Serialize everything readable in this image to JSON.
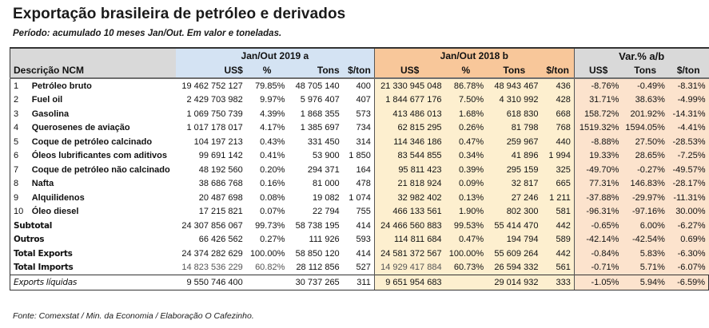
{
  "title": "Exportação brasileira de petróleo e derivados",
  "subtitle": "Período: acumulado 10 meses Jan/Out. Em valor e toneladas.",
  "source": "Fonte: Comexstat / Min. da Economia / Elaboração O Cafezinho.",
  "colors": {
    "period_a_header": "#d4e3f3",
    "period_b_header": "#f8c79a",
    "period_b_body": "#fdefcf",
    "variation_header": "#d9d9d9",
    "variation_body": "#fce3cd"
  },
  "header": {
    "desc": "Descrição NCM",
    "group_a": "Jan/Out 2019 a",
    "group_b": "Jan/Out 2018 b",
    "group_v": "Var.% a/b",
    "a_cols": [
      "US$",
      "%",
      "Tons",
      "$/ton"
    ],
    "b_cols": [
      "US$",
      "%",
      "Tons",
      "$/ton"
    ],
    "v_cols": [
      "US$",
      "Tons",
      "$/ton"
    ]
  },
  "rows": [
    {
      "idx": "1",
      "desc": "Petróleo bruto",
      "a": [
        "19 462 752 127",
        "79.85%",
        "48 705 140",
        "400"
      ],
      "b": [
        "21 330 945 048",
        "86.78%",
        "48 943 467",
        "436"
      ],
      "v": [
        "-8.76%",
        "-0.49%",
        "-8.31%"
      ]
    },
    {
      "idx": "2",
      "desc": "Fuel oil",
      "a": [
        "2 429 703 982",
        "9.97%",
        "5 976 407",
        "407"
      ],
      "b": [
        "1 844 677 176",
        "7.50%",
        "4 310 992",
        "428"
      ],
      "v": [
        "31.71%",
        "38.63%",
        "-4.99%"
      ]
    },
    {
      "idx": "3",
      "desc": "Gasolina",
      "a": [
        "1 069 750 739",
        "4.39%",
        "1 868 355",
        "573"
      ],
      "b": [
        "413 486 013",
        "1.68%",
        "618 830",
        "668"
      ],
      "v": [
        "158.72%",
        "201.92%",
        "-14.31%"
      ]
    },
    {
      "idx": "4",
      "desc": "Querosenes de aviação",
      "a": [
        "1 017 178 017",
        "4.17%",
        "1 385 697",
        "734"
      ],
      "b": [
        "62 815 295",
        "0.26%",
        "81 798",
        "768"
      ],
      "v": [
        "1519.32%",
        "1594.05%",
        "-4.41%"
      ]
    },
    {
      "idx": "5",
      "desc": "Coque de petróleo calcinado",
      "a": [
        "104 197 213",
        "0.43%",
        "331 450",
        "314"
      ],
      "b": [
        "114 346 186",
        "0.47%",
        "259 967",
        "440"
      ],
      "v": [
        "-8.88%",
        "27.50%",
        "-28.53%"
      ]
    },
    {
      "idx": "6",
      "desc": "Óleos lubrificantes com aditivos",
      "a": [
        "99 691 142",
        "0.41%",
        "53 900",
        "1 850"
      ],
      "b": [
        "83 544 855",
        "0.34%",
        "41 896",
        "1 994"
      ],
      "v": [
        "19.33%",
        "28.65%",
        "-7.25%"
      ]
    },
    {
      "idx": "7",
      "desc": "Coque de petróleo não calcinado",
      "a": [
        "48 192 560",
        "0.20%",
        "294 371",
        "164"
      ],
      "b": [
        "95 811 423",
        "0.39%",
        "295 159",
        "325"
      ],
      "v": [
        "-49.70%",
        "-0.27%",
        "-49.57%"
      ]
    },
    {
      "idx": "8",
      "desc": "Nafta",
      "a": [
        "38 686 768",
        "0.16%",
        "81 000",
        "478"
      ],
      "b": [
        "21 818 924",
        "0.09%",
        "32 817",
        "665"
      ],
      "v": [
        "77.31%",
        "146.83%",
        "-28.17%"
      ]
    },
    {
      "idx": "9",
      "desc": "Alquilidenos",
      "a": [
        "20 487 698",
        "0.08%",
        "19 082",
        "1 074"
      ],
      "b": [
        "32 982 402",
        "0.13%",
        "27 246",
        "1 211"
      ],
      "v": [
        "-37.88%",
        "-29.97%",
        "-11.31%"
      ]
    },
    {
      "idx": "10",
      "desc": "Óleo diesel",
      "a": [
        "17 215 821",
        "0.07%",
        "22 794",
        "755"
      ],
      "b": [
        "466 133 561",
        "1.90%",
        "802 300",
        "581"
      ],
      "v": [
        "-96.31%",
        "-97.16%",
        "30.00%"
      ]
    }
  ],
  "totals": [
    {
      "label": "Subtotal",
      "a": [
        "24 307 856 067",
        "99.73%",
        "58 738 195",
        "414"
      ],
      "b": [
        "24 466 560 883",
        "99.53%",
        "55 414 470",
        "442"
      ],
      "v": [
        "-0.65%",
        "6.00%",
        "-6.27%"
      ]
    },
    {
      "label": "Outros",
      "a": [
        "66 426 562",
        "0.27%",
        "111 926",
        "593"
      ],
      "b": [
        "114 811 684",
        "0.47%",
        "194 794",
        "589"
      ],
      "v": [
        "-42.14%",
        "-42.54%",
        "0.69%"
      ]
    },
    {
      "label": "Total Exports",
      "a": [
        "24 374 282 629",
        "100.00%",
        "58 850 120",
        "414"
      ],
      "b": [
        "24 581 372 567",
        "100.00%",
        "55 609 264",
        "442"
      ],
      "v": [
        "-0.84%",
        "5.83%",
        "-6.30%"
      ]
    },
    {
      "label": "Total Imports",
      "a": [
        "14 823 536 229",
        "60.82%",
        "28 112 856",
        "527"
      ],
      "b": [
        "14 929 417 884",
        "60.73%",
        "26 594 332",
        "561"
      ],
      "v": [
        "-0.71%",
        "5.71%",
        "-6.07%"
      ]
    }
  ],
  "net": {
    "label": "Exports líquidas",
    "a": [
      "9 550 746 400",
      "",
      "30 737 265",
      "311"
    ],
    "b": [
      "9 651 954 683",
      "",
      "29 014 932",
      "333"
    ],
    "v": [
      "-1.05%",
      "5.94%",
      "-6.59%"
    ]
  }
}
